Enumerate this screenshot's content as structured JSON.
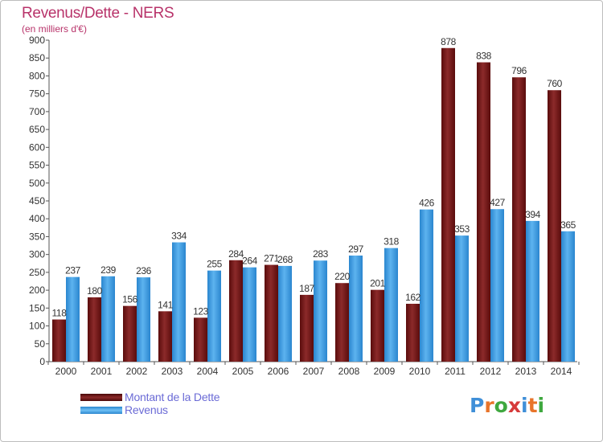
{
  "title": "Revenus/Dette - NERS",
  "subtitle": "(en milliers d'€)",
  "chart_data": {
    "type": "bar",
    "title": "Revenus/Dette - NERS",
    "ylabel": "(en milliers d'€)",
    "ylim": [
      0,
      900
    ],
    "ytick_step": 50,
    "yticks": [
      "0",
      "50",
      "100",
      "150",
      "200",
      "250",
      "300",
      "350",
      "400",
      "450",
      "500",
      "550",
      "600",
      "650",
      "700",
      "750",
      "800",
      "850",
      "900"
    ],
    "grid": false,
    "legend_position": "bottom-left",
    "categories": [
      "2000",
      "2001",
      "2002",
      "2003",
      "2004",
      "2005",
      "2006",
      "2007",
      "2008",
      "2009",
      "2010",
      "2011",
      "2012",
      "2013",
      "2014"
    ],
    "series": [
      {
        "name": "Montant de la Dette",
        "color": "#7a1c1c",
        "values": [
          118,
          180,
          156,
          141,
          123,
          284,
          271,
          187,
          220,
          201,
          162,
          878,
          838,
          796,
          760
        ]
      },
      {
        "name": "Revenus",
        "color": "#3d9de6",
        "values": [
          237,
          239,
          236,
          334,
          255,
          264,
          268,
          283,
          297,
          318,
          426,
          353,
          427,
          394,
          365
        ]
      }
    ]
  },
  "legend": [
    {
      "label": "Montant de la Dette",
      "color": "#7a1c1c"
    },
    {
      "label": "Revenus",
      "color": "#3d9de6"
    }
  ],
  "logo": {
    "letters": [
      "P",
      "r",
      "o",
      "x",
      "i",
      "t",
      "i"
    ],
    "colors": [
      "#3f8fd8",
      "#e8742a",
      "#3fa83f",
      "#d63a3a",
      "#3f8fd8",
      "#e8742a",
      "#3fa83f"
    ]
  }
}
